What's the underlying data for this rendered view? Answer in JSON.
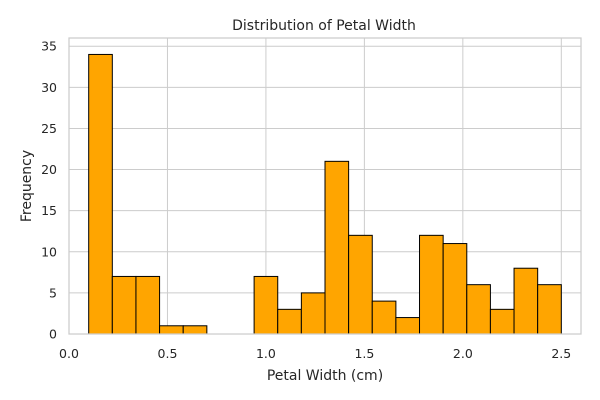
{
  "chart_data": {
    "type": "bar",
    "title": "Distribution of Petal Width",
    "xlabel": "Petal Width (cm)",
    "ylabel": "Frequency",
    "xlim": [
      0.0,
      2.6
    ],
    "ylim": [
      0,
      36
    ],
    "grid": true,
    "bar_color": "#FFA500",
    "edge_color": "#000000",
    "bins": [
      {
        "start": 0.1,
        "end": 0.22,
        "count": 34
      },
      {
        "start": 0.22,
        "end": 0.34,
        "count": 7
      },
      {
        "start": 0.34,
        "end": 0.46,
        "count": 7
      },
      {
        "start": 0.46,
        "end": 0.58,
        "count": 1
      },
      {
        "start": 0.58,
        "end": 0.7,
        "count": 1
      },
      {
        "start": 0.7,
        "end": 0.82,
        "count": 0
      },
      {
        "start": 0.82,
        "end": 0.94,
        "count": 0
      },
      {
        "start": 0.94,
        "end": 1.06,
        "count": 7
      },
      {
        "start": 1.06,
        "end": 1.18,
        "count": 3
      },
      {
        "start": 1.18,
        "end": 1.3,
        "count": 5
      },
      {
        "start": 1.3,
        "end": 1.42,
        "count": 21
      },
      {
        "start": 1.42,
        "end": 1.54,
        "count": 12
      },
      {
        "start": 1.54,
        "end": 1.66,
        "count": 4
      },
      {
        "start": 1.66,
        "end": 1.78,
        "count": 2
      },
      {
        "start": 1.78,
        "end": 1.9,
        "count": 12
      },
      {
        "start": 1.9,
        "end": 2.02,
        "count": 11
      },
      {
        "start": 2.02,
        "end": 2.14,
        "count": 6
      },
      {
        "start": 2.14,
        "end": 2.26,
        "count": 3
      },
      {
        "start": 2.26,
        "end": 2.38,
        "count": 8
      },
      {
        "start": 2.38,
        "end": 2.5,
        "count": 6
      }
    ],
    "x_ticks": [
      "0.0",
      "0.5",
      "1.0",
      "1.5",
      "2.0",
      "2.5"
    ],
    "y_ticks": [
      "0",
      "5",
      "10",
      "15",
      "20",
      "25",
      "30",
      "35"
    ]
  }
}
